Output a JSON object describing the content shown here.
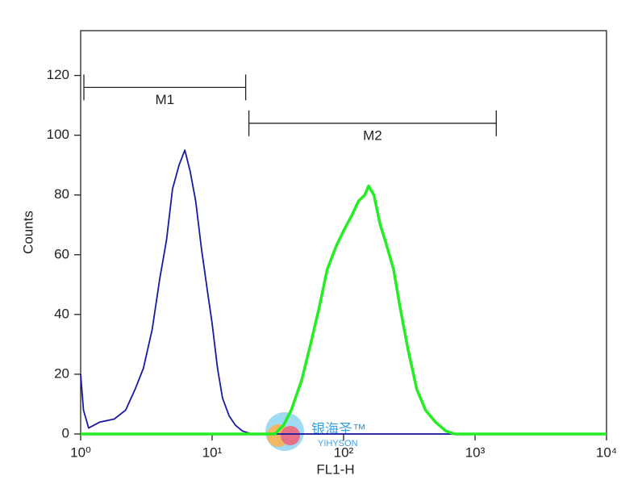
{
  "chart_data": {
    "type": "line",
    "x_scale": "log",
    "y_label": "Counts",
    "x_label": "FL1-H",
    "xlim": [
      1,
      10000
    ],
    "xticks": [
      {
        "value": 1,
        "label": "10⁰"
      },
      {
        "value": 10,
        "label": "10¹"
      },
      {
        "value": 100,
        "label": "10²"
      },
      {
        "value": 1000,
        "label": "10³"
      },
      {
        "value": 10000,
        "label": "10⁴"
      }
    ],
    "ylim": [
      0,
      135
    ],
    "yticks": [
      0,
      20,
      40,
      60,
      80,
      100,
      120
    ],
    "series": [
      {
        "color": "#1a1aa0",
        "x": [
          1,
          1.05,
          1.15,
          1.4,
          1.8,
          2.2,
          2.6,
          3,
          3.5,
          4,
          4.5,
          5,
          5.6,
          6.2,
          6.8,
          7.5,
          8.3,
          9.2,
          10,
          11,
          12,
          13.5,
          15,
          17,
          20,
          100,
          10000
        ],
        "values": [
          20,
          8,
          2,
          4,
          5,
          8,
          15,
          22,
          35,
          52,
          65,
          82,
          90,
          95,
          88,
          78,
          62,
          48,
          37,
          22,
          12,
          6,
          3,
          1,
          0,
          0,
          0
        ]
      },
      {
        "color": "#22ee22",
        "x": [
          1,
          30,
          35,
          40,
          48,
          56,
          65,
          75,
          88,
          100,
          115,
          130,
          145,
          155,
          170,
          190,
          210,
          240,
          270,
          310,
          360,
          420,
          500,
          600,
          700,
          10000
        ],
        "values": [
          0,
          0,
          3,
          8,
          18,
          30,
          42,
          55,
          63,
          68,
          73,
          78,
          80,
          83,
          80,
          70,
          64,
          55,
          42,
          28,
          15,
          8,
          4,
          1,
          0,
          0
        ]
      }
    ],
    "gates": [
      {
        "label": "M1",
        "range": [
          1,
          18
        ],
        "y": 116
      },
      {
        "label": "M2",
        "range": [
          18,
          1450
        ],
        "y": 104
      }
    ],
    "watermark": {
      "name": "银海圣™",
      "sub": "YIHYSON"
    }
  }
}
